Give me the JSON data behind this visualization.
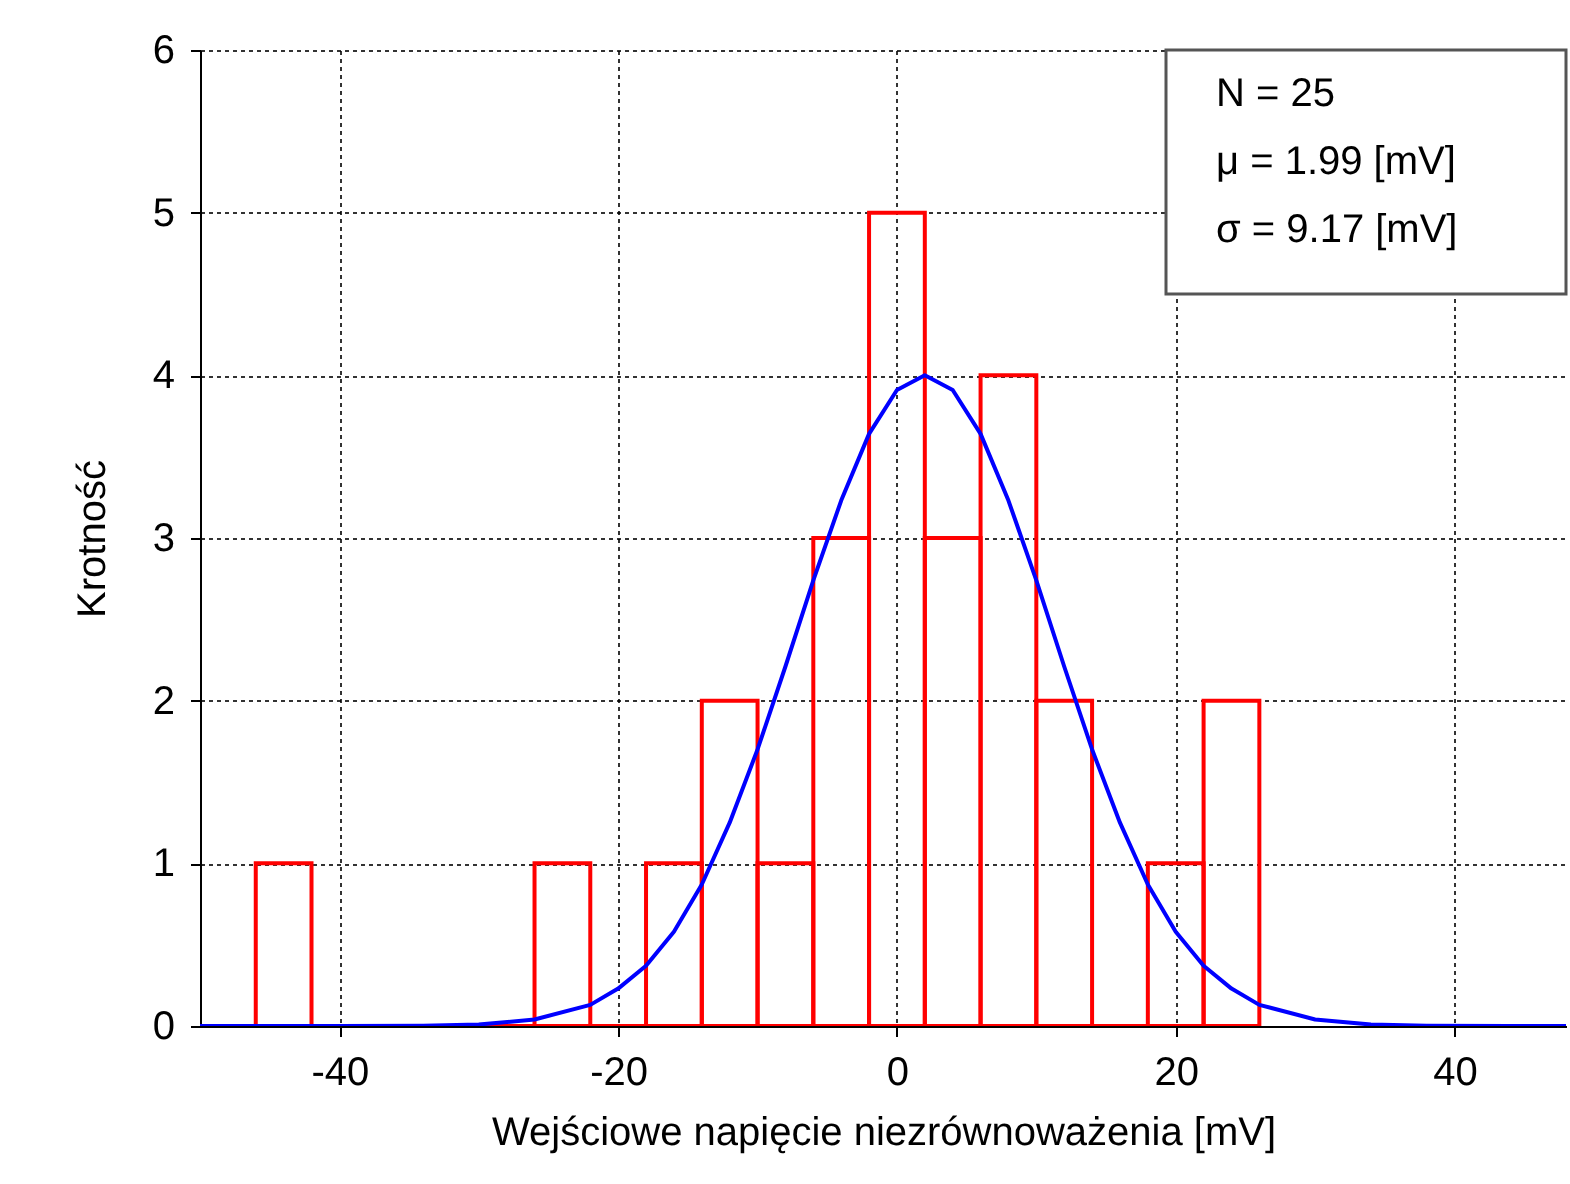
{
  "chart_data": {
    "type": "histogram",
    "xlabel": "Wejściowe napięcie niezrównoważenia [mV]",
    "ylabel": "Krotność",
    "bins": [
      -46,
      -42,
      -38,
      -34,
      -30,
      -26,
      -22,
      -18,
      -14,
      -10,
      -6,
      -2,
      2,
      6,
      10,
      14,
      18,
      22,
      26
    ],
    "values": [
      1,
      0,
      0,
      0,
      0,
      1,
      0,
      1,
      2,
      1,
      3,
      5,
      3,
      4,
      2,
      0,
      1,
      2
    ],
    "color": "#ff0000",
    "series": [
      {
        "type": "line",
        "color": "#0000ff",
        "x": [
          -50,
          -40,
          -34,
          -30,
          -26,
          -22,
          -20,
          -18,
          -16,
          -14,
          -12,
          -10,
          -8,
          -6,
          -4,
          -2,
          0,
          2,
          4,
          6,
          8,
          10,
          12,
          14,
          16,
          18,
          20,
          22,
          24,
          26,
          30,
          34,
          38,
          44,
          48
        ],
        "values": [
          0,
          0,
          0.002,
          0.009,
          0.04,
          0.13,
          0.23,
          0.37,
          0.58,
          0.87,
          1.25,
          1.7,
          2.21,
          2.74,
          3.23,
          3.64,
          3.91,
          4,
          3.91,
          3.64,
          3.23,
          2.74,
          2.21,
          1.7,
          1.25,
          0.87,
          0.58,
          0.37,
          0.23,
          0.13,
          0.04,
          0.009,
          0.002,
          0,
          0
        ]
      }
    ],
    "xlim": [
      -50,
      48
    ],
    "ylim": [
      0,
      6
    ],
    "xticks": [
      -40,
      -20,
      0,
      20,
      40
    ],
    "yticks": [
      0,
      1,
      2,
      3,
      4,
      5,
      6
    ],
    "grid": true,
    "annotations": [
      "N = 25",
      "μ = 1.99 [mV]",
      "σ = 9.17 [mV]"
    ]
  }
}
